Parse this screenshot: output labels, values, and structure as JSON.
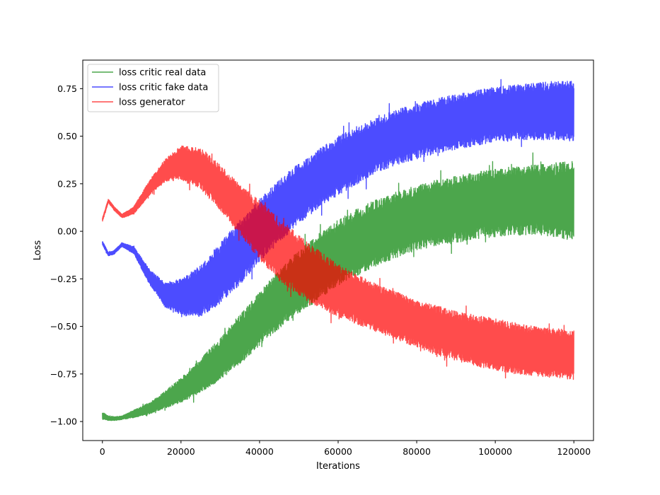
{
  "chart_data": {
    "type": "line",
    "title": "",
    "xlabel": "Iterations",
    "ylabel": "Loss",
    "xlim": [
      -5000,
      125000
    ],
    "ylim": [
      -1.1,
      0.9
    ],
    "x_ticks": [
      0,
      20000,
      40000,
      60000,
      80000,
      100000,
      120000
    ],
    "y_ticks": [
      -1.0,
      -0.75,
      -0.5,
      -0.25,
      0.0,
      0.25,
      0.5,
      0.75
    ],
    "y_tick_labels": [
      "−1.00",
      "−0.75",
      "−0.50",
      "−0.25",
      "0.00",
      "0.25",
      "0.50",
      "0.75"
    ],
    "grid": false,
    "legend_position": "top-left",
    "series": [
      {
        "name": "loss critic real data",
        "color": "#008000",
        "x": [
          0,
          1500,
          3000,
          5000,
          8000,
          12000,
          16000,
          20000,
          25000,
          30000,
          35000,
          40000,
          45000,
          50000,
          55000,
          60000,
          65000,
          70000,
          75000,
          80000,
          85000,
          90000,
          95000,
          100000,
          105000,
          110000,
          115000,
          120000
        ],
        "lower": [
          -0.99,
          -0.995,
          -0.995,
          -0.99,
          -0.98,
          -0.96,
          -0.93,
          -0.9,
          -0.85,
          -0.78,
          -0.7,
          -0.6,
          -0.51,
          -0.43,
          -0.36,
          -0.29,
          -0.23,
          -0.18,
          -0.14,
          -0.1,
          -0.08,
          -0.06,
          -0.04,
          -0.03,
          -0.02,
          -0.02,
          -0.03,
          -0.05
        ],
        "upper": [
          -0.95,
          -0.97,
          -0.975,
          -0.97,
          -0.94,
          -0.9,
          -0.84,
          -0.77,
          -0.67,
          -0.56,
          -0.44,
          -0.32,
          -0.2,
          -0.1,
          -0.01,
          0.06,
          0.12,
          0.17,
          0.21,
          0.24,
          0.27,
          0.29,
          0.31,
          0.33,
          0.34,
          0.35,
          0.36,
          0.37
        ]
      },
      {
        "name": "loss critic fake data",
        "color": "#0000ff",
        "x": [
          0,
          1500,
          3000,
          5000,
          8000,
          12000,
          16000,
          20000,
          25000,
          30000,
          35000,
          40000,
          45000,
          50000,
          55000,
          60000,
          65000,
          70000,
          75000,
          80000,
          85000,
          90000,
          95000,
          100000,
          105000,
          110000,
          115000,
          120000
        ],
        "lower": [
          -0.07,
          -0.13,
          -0.12,
          -0.08,
          -0.12,
          -0.28,
          -0.4,
          -0.44,
          -0.45,
          -0.38,
          -0.28,
          -0.16,
          -0.06,
          0.04,
          0.12,
          0.19,
          0.25,
          0.31,
          0.35,
          0.38,
          0.41,
          0.43,
          0.45,
          0.47,
          0.48,
          0.48,
          0.48,
          0.47
        ],
        "upper": [
          -0.05,
          -0.11,
          -0.1,
          -0.06,
          -0.08,
          -0.2,
          -0.27,
          -0.25,
          -0.18,
          -0.06,
          0.06,
          0.17,
          0.27,
          0.36,
          0.43,
          0.5,
          0.55,
          0.6,
          0.64,
          0.67,
          0.7,
          0.72,
          0.74,
          0.76,
          0.77,
          0.78,
          0.79,
          0.79
        ]
      },
      {
        "name": "loss generator",
        "color": "#ff0000",
        "x": [
          0,
          1500,
          3000,
          5000,
          8000,
          12000,
          16000,
          20000,
          25000,
          30000,
          35000,
          40000,
          45000,
          50000,
          55000,
          60000,
          65000,
          70000,
          75000,
          80000,
          85000,
          90000,
          95000,
          100000,
          105000,
          110000,
          115000,
          120000
        ],
        "lower": [
          0.05,
          0.15,
          0.11,
          0.07,
          0.09,
          0.19,
          0.26,
          0.27,
          0.22,
          0.11,
          -0.02,
          -0.15,
          -0.26,
          -0.34,
          -0.4,
          -0.45,
          -0.49,
          -0.53,
          -0.57,
          -0.61,
          -0.65,
          -0.68,
          -0.71,
          -0.73,
          -0.75,
          -0.76,
          -0.77,
          -0.78
        ],
        "upper": [
          0.07,
          0.17,
          0.13,
          0.09,
          0.13,
          0.27,
          0.38,
          0.45,
          0.44,
          0.35,
          0.25,
          0.16,
          0.07,
          -0.02,
          -0.1,
          -0.17,
          -0.23,
          -0.28,
          -0.32,
          -0.36,
          -0.39,
          -0.42,
          -0.44,
          -0.46,
          -0.48,
          -0.5,
          -0.51,
          -0.52
        ]
      }
    ]
  }
}
